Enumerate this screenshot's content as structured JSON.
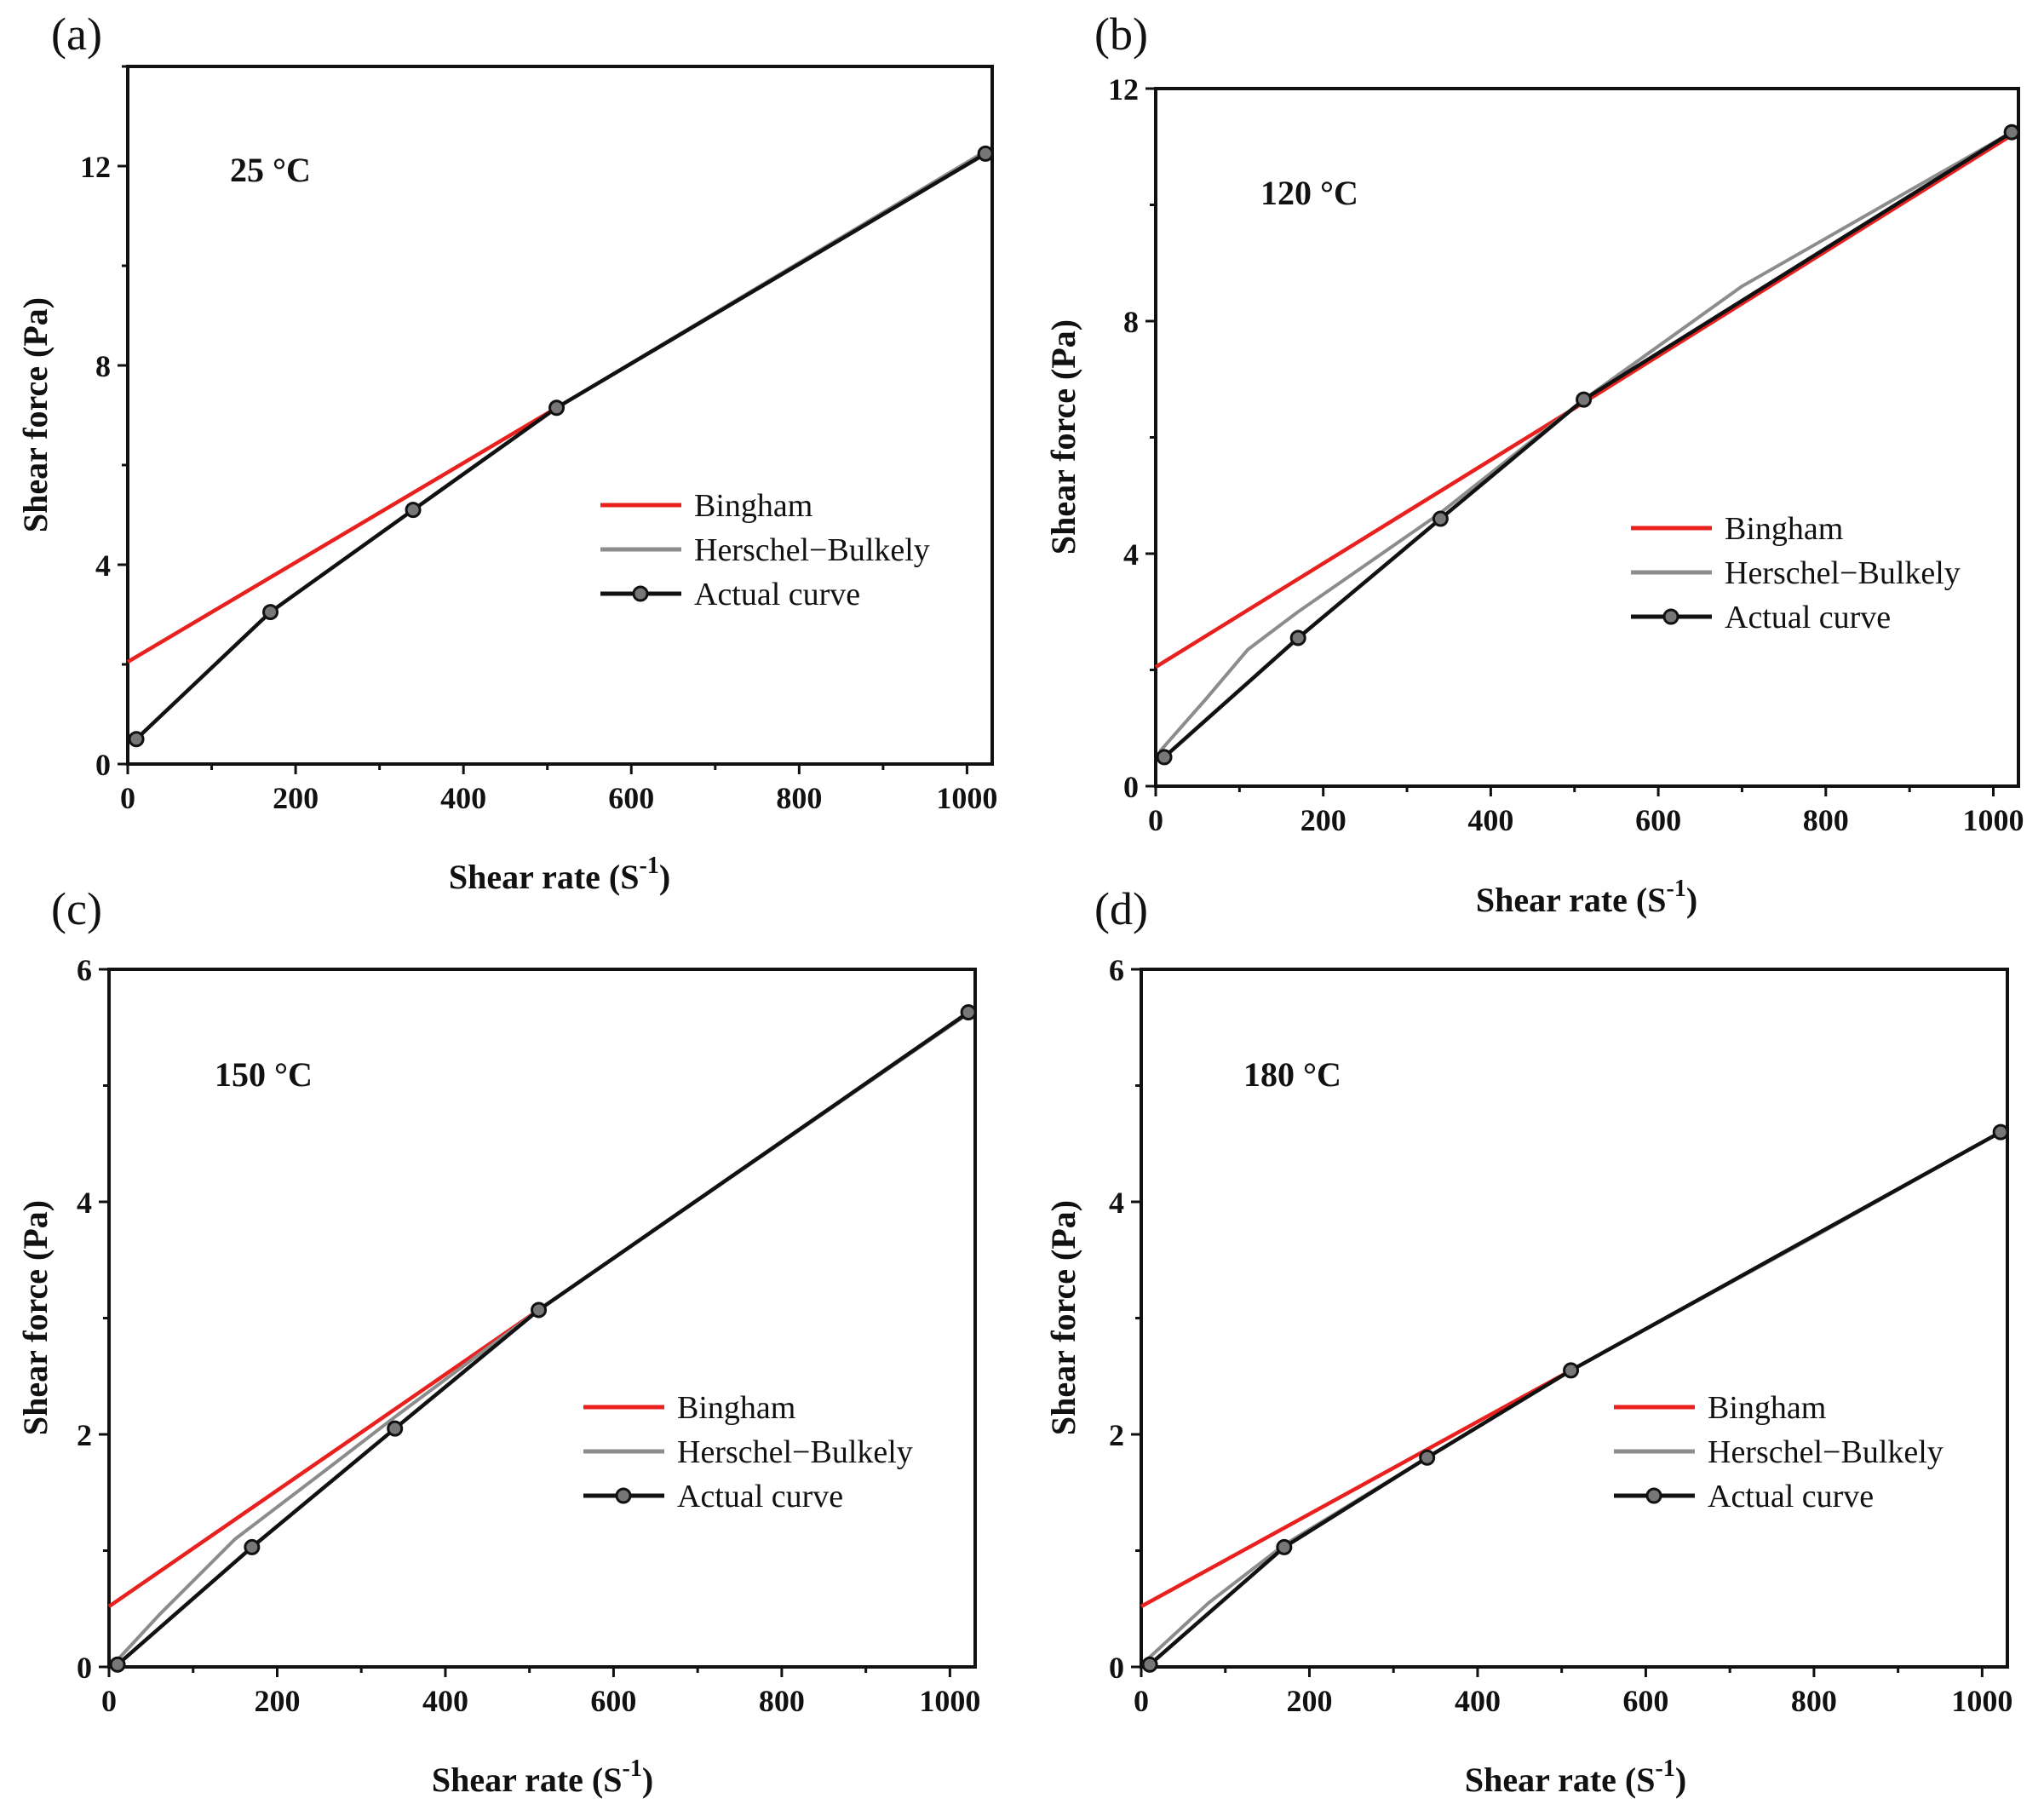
{
  "colors": {
    "Bingham": "#e8201e",
    "Herschel-Bulkely": "#8c8c8c",
    "Actual curve": "#111111",
    "frame": "#111111"
  },
  "chart_data": [
    {
      "type": "line",
      "panel": "(a)",
      "annotation": "25 °C",
      "xlabel": "Shear rate (S",
      "xlabel_sup": "-1",
      "xlabel_end": ")",
      "ylabel": "Shear force (Pa)",
      "xlim": [
        0,
        1030
      ],
      "ylim": [
        0,
        14
      ],
      "xticks": [
        0,
        200,
        400,
        600,
        800,
        1000
      ],
      "yticks": [
        0,
        4,
        8,
        12
      ],
      "legend": [
        "Bingham",
        "Herschel−Bulkely",
        "Actual curve"
      ],
      "series": [
        {
          "name": "Bingham",
          "x": [
            0,
            511
          ],
          "y": [
            2.05,
            7.15
          ]
        },
        {
          "name": "Herschel-Bulkely",
          "x": [
            511,
            1022
          ],
          "y": [
            7.15,
            12.3
          ]
        },
        {
          "name": "Actual curve",
          "x": [
            10.2,
            170,
            340,
            511,
            1022
          ],
          "y": [
            0.5,
            3.05,
            5.1,
            7.15,
            12.25
          ]
        }
      ]
    },
    {
      "type": "line",
      "panel": "(b)",
      "annotation": "120 °C",
      "xlabel": "Shear rate (S",
      "xlabel_sup": "-1",
      "xlabel_end": ")",
      "ylabel": "Shear force (Pa)",
      "xlim": [
        0,
        1030
      ],
      "ylim": [
        0,
        12
      ],
      "xticks": [
        0,
        200,
        400,
        600,
        800,
        1000
      ],
      "yticks": [
        0,
        4,
        8,
        12
      ],
      "legend": [
        "Bingham",
        "Herschel−Bulkely",
        "Actual curve"
      ],
      "series": [
        {
          "name": "Bingham",
          "x": [
            0,
            511,
            1022
          ],
          "y": [
            2.05,
            6.6,
            11.2
          ]
        },
        {
          "name": "Herschel-Bulkely",
          "x": [
            5,
            60,
            110,
            170,
            240,
            340,
            511,
            700,
            1022
          ],
          "y": [
            0.6,
            1.5,
            2.35,
            3.0,
            3.7,
            4.7,
            6.65,
            8.6,
            11.25
          ]
        },
        {
          "name": "Actual curve",
          "x": [
            10.2,
            170,
            340,
            511,
            1022
          ],
          "y": [
            0.5,
            2.55,
            4.6,
            6.65,
            11.25
          ]
        }
      ]
    },
    {
      "type": "line",
      "panel": "(c)",
      "annotation": "150 °C",
      "xlabel": "Shear rate (S",
      "xlabel_sup": "-1",
      "xlabel_end": ")",
      "ylabel": "Shear force (Pa)",
      "xlim": [
        0,
        1030
      ],
      "ylim": [
        0,
        6
      ],
      "xticks": [
        0,
        200,
        400,
        600,
        800,
        1000
      ],
      "yticks": [
        0,
        2,
        4,
        6
      ],
      "legend": [
        "Bingham",
        "Herschel−Bulkely",
        "Actual curve"
      ],
      "series": [
        {
          "name": "Bingham",
          "x": [
            0,
            511
          ],
          "y": [
            0.52,
            3.07
          ]
        },
        {
          "name": "Herschel-Bulkely",
          "x": [
            5,
            60,
            150,
            250,
            340,
            511,
            1022
          ],
          "y": [
            0.02,
            0.45,
            1.1,
            1.65,
            2.15,
            3.07,
            5.62
          ]
        },
        {
          "name": "Actual curve",
          "x": [
            10.2,
            170,
            340,
            511,
            1022
          ],
          "y": [
            0.02,
            1.03,
            2.05,
            3.07,
            5.63
          ]
        }
      ]
    },
    {
      "type": "line",
      "panel": "(d)",
      "annotation": "180 °C",
      "xlabel": "Shear rate (S",
      "xlabel_sup": "-1",
      "xlabel_end": ")",
      "ylabel": "Shear force (Pa)",
      "xlim": [
        0,
        1030
      ],
      "ylim": [
        0,
        6
      ],
      "xticks": [
        0,
        200,
        400,
        600,
        800,
        1000
      ],
      "yticks": [
        0,
        2,
        4,
        6
      ],
      "legend": [
        "Bingham",
        "Herschel−Bulkely",
        "Actual curve"
      ],
      "series": [
        {
          "name": "Bingham",
          "x": [
            0,
            511
          ],
          "y": [
            0.52,
            2.55
          ]
        },
        {
          "name": "Herschel-Bulkely",
          "x": [
            5,
            80,
            170,
            340,
            511,
            800,
            1022
          ],
          "y": [
            0.05,
            0.55,
            1.05,
            1.8,
            2.55,
            3.7,
            4.6
          ]
        },
        {
          "name": "Actual curve",
          "x": [
            10.2,
            170,
            340,
            511,
            1022
          ],
          "y": [
            0.02,
            1.03,
            1.8,
            2.55,
            4.6
          ]
        }
      ]
    }
  ]
}
